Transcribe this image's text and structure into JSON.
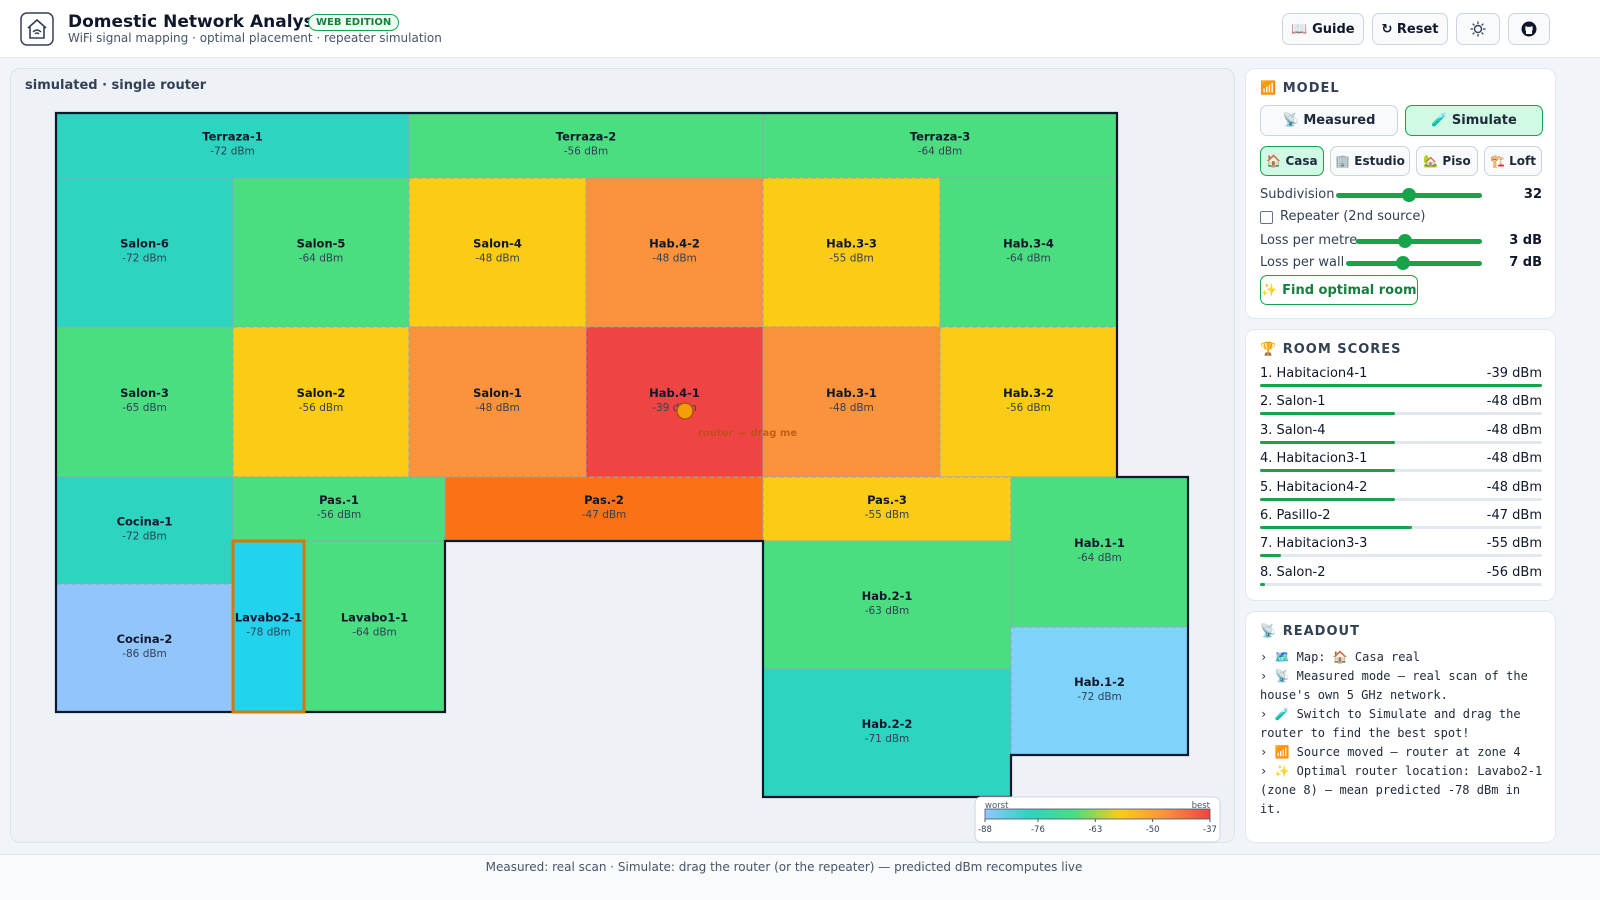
{
  "header": {
    "title": "Domestic Network Analysis",
    "badge": "WEB EDITION",
    "subtitle": "WiFi signal mapping · optimal placement · repeater simulation",
    "buttons": [
      "📖 Guide",
      "↻ Reset"
    ]
  },
  "map": {
    "mode_label": "simulated · single router",
    "rooms": [
      {
        "label": "Terraza-1",
        "signal": "-72 dBm",
        "color": "#2dd4bf"
      },
      {
        "label": "Terraza-2",
        "signal": "-56 dBm",
        "color": "#4ade80"
      },
      {
        "label": "Terraza-3",
        "signal": "-64 dBm",
        "color": "#4ade80"
      },
      {
        "label": "Salon-6",
        "signal": "-72 dBm",
        "color": "#2dd4bf"
      },
      {
        "label": "Salon-5",
        "signal": "-64 dBm",
        "color": "#4ade80"
      },
      {
        "label": "Salon-4",
        "signal": "-48 dBm",
        "color": "#facc15"
      },
      {
        "label": "Hab.4-2",
        "signal": "-48 dBm",
        "color": "#fb923c"
      },
      {
        "label": "Hab.3-3",
        "signal": "-55 dBm",
        "color": "#facc15"
      },
      {
        "label": "Hab.3-4",
        "signal": "-64 dBm",
        "color": "#4ade80"
      },
      {
        "label": "Salon-3",
        "signal": "-65 dBm",
        "color": "#4ade80"
      },
      {
        "label": "Salon-2",
        "signal": "-56 dBm",
        "color": "#facc15"
      },
      {
        "label": "Salon-1",
        "signal": "-48 dBm",
        "color": "#fb923c"
      },
      {
        "label": "Hab.4-1",
        "signal": "-39 dBm",
        "color": "#ef4444"
      },
      {
        "label": "Hab.3-1",
        "signal": "-48 dBm",
        "color": "#fb923c"
      },
      {
        "label": "Hab.3-2",
        "signal": "-56 dBm",
        "color": "#facc15"
      },
      {
        "label": "Cocina-1",
        "signal": "-72 dBm",
        "color": "#2dd4bf"
      },
      {
        "label": "Pas.-1",
        "signal": "-56 dBm",
        "color": "#4ade80"
      },
      {
        "label": "Pas.-2",
        "signal": "-47 dBm",
        "color": "#f97316"
      },
      {
        "label": "Pas.-3",
        "signal": "-55 dBm",
        "color": "#facc15"
      },
      {
        "label": "Hab.1-1",
        "signal": "-64 dBm",
        "color": "#4ade80"
      },
      {
        "label": "Cocina-2",
        "signal": "-86 dBm",
        "color": "#93c5fd"
      },
      {
        "label": "Lavabo2-1",
        "signal": "-78 dBm",
        "color": "#22d3ee",
        "outlined": true
      },
      {
        "label": "Lavabo1-1",
        "signal": "-64 dBm",
        "color": "#4ade80"
      },
      {
        "label": "Hab.2-1",
        "signal": "-63 dBm",
        "color": "#4ade80"
      },
      {
        "label": "Hab.2-2",
        "signal": "-71 dBm",
        "color": "#2dd4bf"
      },
      {
        "label": "Hab.1-2",
        "signal": "-72 dBm",
        "color": "#7dd3fc"
      }
    ],
    "router_hint": "router — drag me",
    "legend": {
      "worst": "worst",
      "best": "best",
      "ticks": [
        -88,
        -76,
        -63,
        -50,
        -37
      ],
      "colors": [
        "#93c5fd",
        "#2dd4bf",
        "#4ade80",
        "#facc15",
        "#fb923c",
        "#ef4444"
      ]
    }
  },
  "model": {
    "title": "📶 MODEL",
    "modes": [
      "📡 Measured",
      "🧪 Simulate"
    ],
    "active_mode": 1,
    "maps": [
      "🏠 Casa",
      "🏢 Estudio",
      "🏡 Piso",
      "🏗️ Loft"
    ],
    "active_map": 0,
    "subdivision": {
      "label": "Subdivision",
      "value": 32
    },
    "repeater": "Repeater (2nd source)",
    "loss_metre": {
      "label": "Loss per metre",
      "value": "3 dB"
    },
    "loss_wall": {
      "label": "Loss per wall",
      "value": "7 dB"
    },
    "optimal_button": "✨ Find optimal room"
  },
  "scores": {
    "title": "🏆 ROOM SCORES",
    "items": [
      {
        "name": "1. Habitacion4-1",
        "value": -39,
        "label": "-39 dBm"
      },
      {
        "name": "2. Salon-1",
        "value": -48,
        "label": "-48 dBm"
      },
      {
        "name": "3. Salon-4",
        "value": -48,
        "label": "-48 dBm"
      },
      {
        "name": "4. Habitacion3-1",
        "value": -48,
        "label": "-48 dBm"
      },
      {
        "name": "5. Habitacion4-2",
        "value": -48,
        "label": "-48 dBm"
      },
      {
        "name": "6. Pasillo-2",
        "value": -47,
        "label": "-47 dBm"
      },
      {
        "name": "7. Habitacion3-3",
        "value": -55,
        "label": "-55 dBm"
      },
      {
        "name": "8. Salon-2",
        "value": -56,
        "label": "-56 dBm"
      }
    ]
  },
  "readout": {
    "title": "📡 READOUT",
    "lines": [
      "› 🗺️ Map: 🏠 Casa real",
      "› 📡 Measured mode — real scan of the house's own 5 GHz network.",
      "› 🧪 Switch to Simulate and drag the router to find the best spot!",
      "› 📶 Source moved — router at zone 4",
      "› ✨ Optimal router location: Lavabo2-1 (zone 8) — mean predicted -78 dBm in it."
    ]
  },
  "footer": "Measured: real scan · Simulate: drag the router (or the repeater) — predicted dBm recomputes live"
}
